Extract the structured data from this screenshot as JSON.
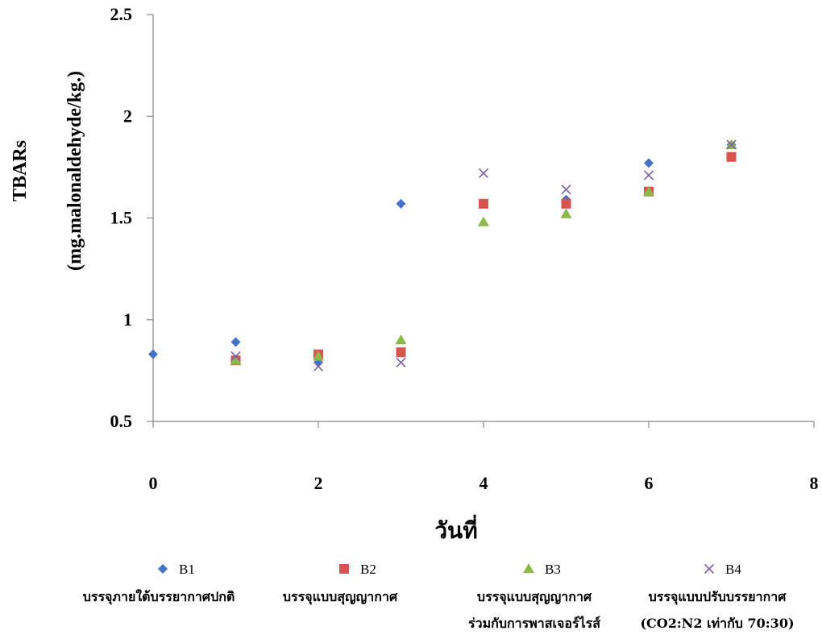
{
  "chart_data": {
    "type": "scatter",
    "xlabel": "วันที่",
    "ylabel_line1": "TBARs",
    "ylabel_line2": "(mg.malonaldehyde/kg.)",
    "xlim": [
      0,
      8
    ],
    "ylim": [
      0.5,
      2.5
    ],
    "xticks": [
      "0",
      "2",
      "4",
      "6",
      "8"
    ],
    "yticks": [
      "0.5",
      "1",
      "1.5",
      "2",
      "2.5"
    ],
    "grid": false,
    "legend_position": "bottom",
    "series": [
      {
        "name": "B1",
        "description": [
          "บรรจุภายใต้บรรยากาศปกติ"
        ],
        "marker": "diamond",
        "color": "#4472C4",
        "points": [
          [
            0,
            0.83
          ],
          [
            1,
            0.89
          ],
          [
            2,
            0.79
          ],
          [
            3,
            1.57
          ],
          [
            4,
            1.57
          ],
          [
            5,
            1.59
          ],
          [
            6,
            1.77
          ],
          [
            7,
            1.86
          ]
        ]
      },
      {
        "name": "B2",
        "description": [
          "บรรจุแบบสุญญากาศ"
        ],
        "marker": "square",
        "color": "#D9534F",
        "points": [
          [
            1,
            0.8
          ],
          [
            2,
            0.83
          ],
          [
            3,
            0.84
          ],
          [
            4,
            1.57
          ],
          [
            5,
            1.57
          ],
          [
            6,
            1.63
          ],
          [
            7,
            1.8
          ]
        ]
      },
      {
        "name": "B3",
        "description": [
          "บรรจุแบบสุญญากาศ",
          "ร่วมกับการพาสเจอร์ไรส์"
        ],
        "marker": "triangle",
        "color": "#8DB84A",
        "points": [
          [
            1,
            0.8
          ],
          [
            2,
            0.82
          ],
          [
            3,
            0.9
          ],
          [
            4,
            1.48
          ],
          [
            5,
            1.52
          ],
          [
            6,
            1.63
          ],
          [
            7,
            1.86
          ]
        ]
      },
      {
        "name": "B4",
        "description": [
          "บรรจุแบบปรับบรรยากาศ",
          "(CO2:N2 เท่ากับ 70:30)"
        ],
        "marker": "x",
        "color": "#7E5FA6",
        "points": [
          [
            1,
            0.82
          ],
          [
            2,
            0.77
          ],
          [
            3,
            0.79
          ],
          [
            4,
            1.72
          ],
          [
            5,
            1.64
          ],
          [
            6,
            1.71
          ],
          [
            7,
            1.86
          ]
        ]
      }
    ]
  }
}
